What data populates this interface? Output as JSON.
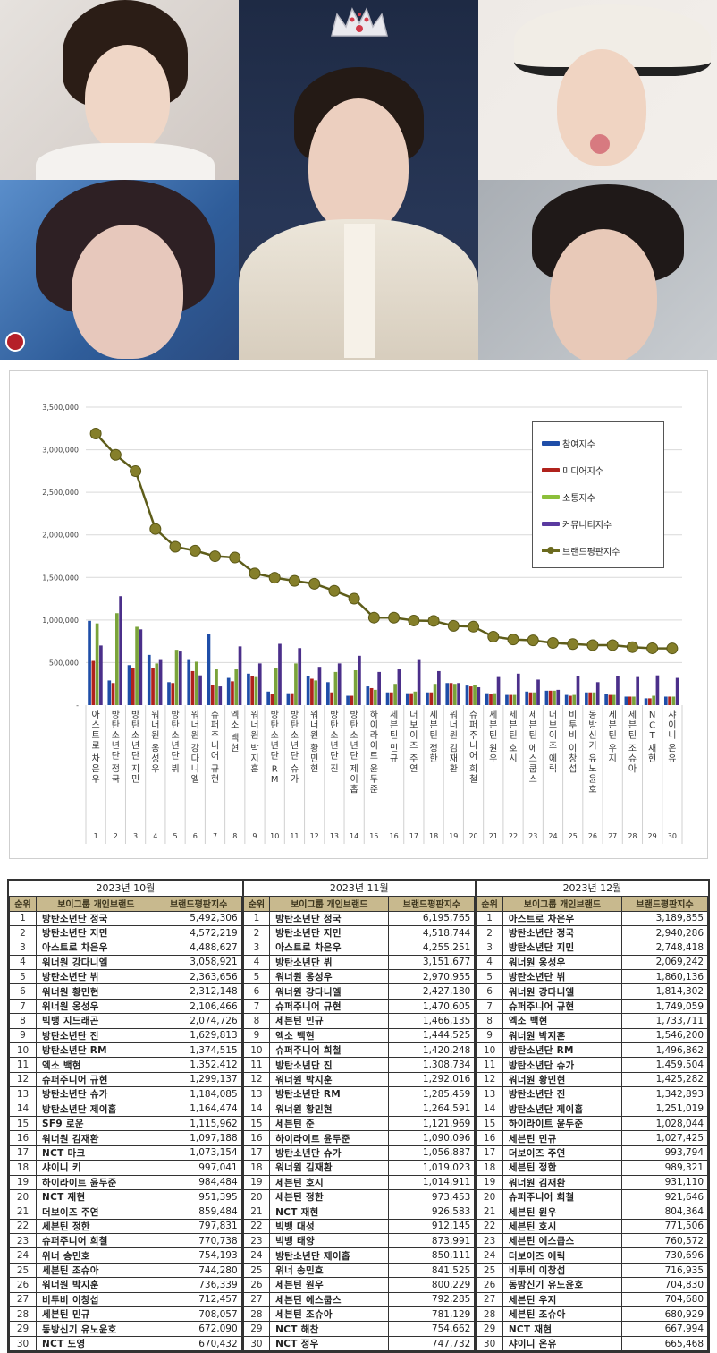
{
  "photos": [
    {
      "id": "photo-top-left",
      "alt": "portrait-1"
    },
    {
      "id": "photo-center",
      "alt": "portrait-center-with-crown"
    },
    {
      "id": "photo-top-right",
      "alt": "portrait-3"
    },
    {
      "id": "photo-bottom-left",
      "alt": "portrait-4"
    },
    {
      "id": "photo-bottom-right",
      "alt": "portrait-5"
    }
  ],
  "chart": {
    "legend": [
      "참여지수",
      "미디어지수",
      "소통지수",
      "커뮤니티지수",
      "브랜드평판지수"
    ],
    "colors": {
      "participation": "#1f4ea8",
      "media": "#b0221c",
      "communication": "#7aa33a",
      "community": "#4b2f8a",
      "brand": "#6b6a1e"
    }
  },
  "chart_data": {
    "type": "bar",
    "title": "",
    "xlabel": "",
    "ylabel": "",
    "ylim": [
      0,
      3500000
    ],
    "yticks": [
      "-",
      "500,000",
      "1,000,000",
      "1,500,000",
      "2,000,000",
      "2,500,000",
      "3,000,000",
      "3,500,000"
    ],
    "grid": true,
    "legend_position": "upper right",
    "categories": [
      "아스트로 차은우",
      "방탄소년단 정국",
      "방탄소년단 지민",
      "워너원 옹성우",
      "방탄소년단 뷔",
      "워너원 강다니엘",
      "슈퍼주니어 규현",
      "엑소 백현",
      "워너원 박지훈",
      "방탄소년단 RM",
      "방탄소년단 슈가",
      "워너원 황민현",
      "방탄소년단 진",
      "방탄소년단 제이홉",
      "하이라이트 윤두준",
      "세븐틴 민규",
      "더보이즈 주연",
      "세븐틴 정한",
      "워너원 김재환",
      "슈퍼주니어 희철",
      "세븐틴 원우",
      "세븐틴 호시",
      "세븐틴 에스쿱스",
      "더보이즈 에릭",
      "비투비 이창섭",
      "동방신기 유노윤호",
      "세븐틴 우지",
      "세븐틴 조슈아",
      "NCT 재현",
      "샤이니 온유"
    ],
    "x_numbers": [
      "1",
      "2",
      "3",
      "4",
      "5",
      "6",
      "7",
      "8",
      "9",
      "10",
      "11",
      "12",
      "13",
      "14",
      "15",
      "16",
      "17",
      "18",
      "19",
      "20",
      "21",
      "22",
      "23",
      "24",
      "25",
      "26",
      "27",
      "28",
      "29",
      "30"
    ],
    "series": [
      {
        "name": "참여지수",
        "type": "bar",
        "values": [
          990000,
          290000,
          470000,
          590000,
          270000,
          530000,
          840000,
          320000,
          370000,
          160000,
          140000,
          340000,
          270000,
          110000,
          220000,
          150000,
          140000,
          150000,
          260000,
          230000,
          140000,
          120000,
          160000,
          170000,
          120000,
          150000,
          130000,
          100000,
          80000,
          100000
        ]
      },
      {
        "name": "미디어지수",
        "type": "bar",
        "values": [
          520000,
          260000,
          440000,
          440000,
          260000,
          400000,
          240000,
          280000,
          340000,
          130000,
          140000,
          310000,
          150000,
          110000,
          200000,
          150000,
          140000,
          150000,
          260000,
          220000,
          130000,
          120000,
          150000,
          170000,
          110000,
          150000,
          120000,
          100000,
          80000,
          100000
        ]
      },
      {
        "name": "소통지수",
        "type": "bar",
        "values": [
          960000,
          1080000,
          920000,
          490000,
          650000,
          510000,
          420000,
          420000,
          330000,
          440000,
          490000,
          290000,
          390000,
          410000,
          180000,
          250000,
          160000,
          250000,
          250000,
          240000,
          140000,
          120000,
          150000,
          170000,
          120000,
          150000,
          120000,
          100000,
          110000,
          100000
        ]
      },
      {
        "name": "커뮤니티지수",
        "type": "bar",
        "values": [
          700000,
          1280000,
          890000,
          530000,
          630000,
          350000,
          220000,
          690000,
          490000,
          720000,
          670000,
          450000,
          490000,
          580000,
          390000,
          420000,
          530000,
          400000,
          260000,
          210000,
          330000,
          370000,
          300000,
          180000,
          340000,
          270000,
          340000,
          330000,
          350000,
          320000
        ]
      },
      {
        "name": "브랜드평판지수",
        "type": "line",
        "values": [
          3189855,
          2940286,
          2748418,
          2069242,
          1860136,
          1814302,
          1749059,
          1733711,
          1546200,
          1496862,
          1459504,
          1425282,
          1342893,
          1251019,
          1028044,
          1027425,
          993794,
          989321,
          931110,
          921646,
          804364,
          771506,
          760572,
          730696,
          716935,
          704830,
          704680,
          680929,
          667994,
          665468
        ]
      }
    ]
  },
  "tables": [
    {
      "month": "2023년 10월",
      "headers": [
        "순위",
        "보이그룹 개인브랜드",
        "브랜드평판지수"
      ],
      "rows": [
        [
          "1",
          "방탄소년단 정국",
          "5,492,306"
        ],
        [
          "2",
          "방탄소년단 지민",
          "4,572,219"
        ],
        [
          "3",
          "아스트로 차은우",
          "4,488,627"
        ],
        [
          "4",
          "워너원 강다니엘",
          "3,058,921"
        ],
        [
          "5",
          "방탄소년단 뷔",
          "2,363,656"
        ],
        [
          "6",
          "워너원 황민현",
          "2,312,148"
        ],
        [
          "7",
          "워너원 옹성우",
          "2,106,466"
        ],
        [
          "8",
          "빅뱅 지드래곤",
          "2,074,726"
        ],
        [
          "9",
          "방탄소년단 진",
          "1,629,813"
        ],
        [
          "10",
          "방탄소년단 RM",
          "1,374,515"
        ],
        [
          "11",
          "엑소 백현",
          "1,352,412"
        ],
        [
          "12",
          "슈퍼주니어 규현",
          "1,299,137"
        ],
        [
          "13",
          "방탄소년단 슈가",
          "1,184,085"
        ],
        [
          "14",
          "방탄소년단 제이홉",
          "1,164,474"
        ],
        [
          "15",
          "SF9 로운",
          "1,115,962"
        ],
        [
          "16",
          "워너원 김재환",
          "1,097,188"
        ],
        [
          "17",
          "NCT 마크",
          "1,073,154"
        ],
        [
          "18",
          "샤이니 키",
          "997,041"
        ],
        [
          "19",
          "하이라이트 윤두준",
          "984,484"
        ],
        [
          "20",
          "NCT 재현",
          "951,395"
        ],
        [
          "21",
          "더보이즈 주연",
          "859,484"
        ],
        [
          "22",
          "세븐틴 정한",
          "797,831"
        ],
        [
          "23",
          "슈퍼주니어 희철",
          "770,738"
        ],
        [
          "24",
          "위너 송민호",
          "754,193"
        ],
        [
          "25",
          "세븐틴 조슈아",
          "744,280"
        ],
        [
          "26",
          "워너원 박지훈",
          "736,339"
        ],
        [
          "27",
          "비투비 이창섭",
          "712,457"
        ],
        [
          "28",
          "세븐틴 민규",
          "708,057"
        ],
        [
          "29",
          "동방신기 유노윤호",
          "672,090"
        ],
        [
          "30",
          "NCT 도영",
          "670,432"
        ]
      ]
    },
    {
      "month": "2023년 11월",
      "headers": [
        "순위",
        "보이그룹 개인브랜드",
        "브랜드평판지수"
      ],
      "rows": [
        [
          "1",
          "방탄소년단 정국",
          "6,195,765"
        ],
        [
          "2",
          "방탄소년단 지민",
          "4,518,744"
        ],
        [
          "3",
          "아스트로 차은우",
          "4,255,251"
        ],
        [
          "4",
          "방탄소년단 뷔",
          "3,151,677"
        ],
        [
          "5",
          "워너원 옹성우",
          "2,970,955"
        ],
        [
          "6",
          "워너원 강다니엘",
          "2,427,180"
        ],
        [
          "7",
          "슈퍼주니어 규현",
          "1,470,605"
        ],
        [
          "8",
          "세븐틴 민규",
          "1,466,135"
        ],
        [
          "9",
          "엑소 백현",
          "1,444,525"
        ],
        [
          "10",
          "슈퍼주니어 희철",
          "1,420,248"
        ],
        [
          "11",
          "방탄소년단 진",
          "1,308,734"
        ],
        [
          "12",
          "워너원 박지훈",
          "1,292,016"
        ],
        [
          "13",
          "방탄소년단 RM",
          "1,285,459"
        ],
        [
          "14",
          "워너원 황민현",
          "1,264,591"
        ],
        [
          "15",
          "세븐틴 준",
          "1,121,969"
        ],
        [
          "16",
          "하이라이트 윤두준",
          "1,090,096"
        ],
        [
          "17",
          "방탄소년단 슈가",
          "1,056,887"
        ],
        [
          "18",
          "워너원 김재환",
          "1,019,023"
        ],
        [
          "19",
          "세븐틴 호시",
          "1,014,911"
        ],
        [
          "20",
          "세븐틴 정한",
          "973,453"
        ],
        [
          "21",
          "NCT 재현",
          "926,583"
        ],
        [
          "22",
          "빅뱅 대성",
          "912,145"
        ],
        [
          "23",
          "빅뱅 태양",
          "873,991"
        ],
        [
          "24",
          "방탄소년단 제이홉",
          "850,111"
        ],
        [
          "25",
          "위너 송민호",
          "841,525"
        ],
        [
          "26",
          "세븐틴 원우",
          "800,229"
        ],
        [
          "27",
          "세븐틴 에스쿱스",
          "792,285"
        ],
        [
          "28",
          "세븐틴 조슈아",
          "781,129"
        ],
        [
          "29",
          "NCT 해찬",
          "754,662"
        ],
        [
          "30",
          "NCT 정우",
          "747,732"
        ]
      ]
    },
    {
      "month": "2023년 12월",
      "headers": [
        "순위",
        "보이그룹 개인브랜드",
        "브랜드평판지수"
      ],
      "rows": [
        [
          "1",
          "아스트로 차은우",
          "3,189,855"
        ],
        [
          "2",
          "방탄소년단 정국",
          "2,940,286"
        ],
        [
          "3",
          "방탄소년단 지민",
          "2,748,418"
        ],
        [
          "4",
          "워너원 옹성우",
          "2,069,242"
        ],
        [
          "5",
          "방탄소년단 뷔",
          "1,860,136"
        ],
        [
          "6",
          "워너원 강다니엘",
          "1,814,302"
        ],
        [
          "7",
          "슈퍼주니어 규현",
          "1,749,059"
        ],
        [
          "8",
          "엑소 백현",
          "1,733,711"
        ],
        [
          "9",
          "워너원 박지훈",
          "1,546,200"
        ],
        [
          "10",
          "방탄소년단 RM",
          "1,496,862"
        ],
        [
          "11",
          "방탄소년단 슈가",
          "1,459,504"
        ],
        [
          "12",
          "워너원 황민현",
          "1,425,282"
        ],
        [
          "13",
          "방탄소년단 진",
          "1,342,893"
        ],
        [
          "14",
          "방탄소년단 제이홉",
          "1,251,019"
        ],
        [
          "15",
          "하이라이트 윤두준",
          "1,028,044"
        ],
        [
          "16",
          "세븐틴 민규",
          "1,027,425"
        ],
        [
          "17",
          "더보이즈 주연",
          "993,794"
        ],
        [
          "18",
          "세븐틴 정한",
          "989,321"
        ],
        [
          "19",
          "워너원 김재환",
          "931,110"
        ],
        [
          "20",
          "슈퍼주니어 희철",
          "921,646"
        ],
        [
          "21",
          "세븐틴 원우",
          "804,364"
        ],
        [
          "22",
          "세븐틴 호시",
          "771,506"
        ],
        [
          "23",
          "세븐틴 에스쿱스",
          "760,572"
        ],
        [
          "24",
          "더보이즈 에릭",
          "730,696"
        ],
        [
          "25",
          "비투비 이창섭",
          "716,935"
        ],
        [
          "26",
          "동방신기 유노윤호",
          "704,830"
        ],
        [
          "27",
          "세븐틴 우지",
          "704,680"
        ],
        [
          "28",
          "세븐틴 조슈아",
          "680,929"
        ],
        [
          "29",
          "NCT 재현",
          "667,994"
        ],
        [
          "30",
          "샤이니 온유",
          "665,468"
        ]
      ]
    }
  ]
}
